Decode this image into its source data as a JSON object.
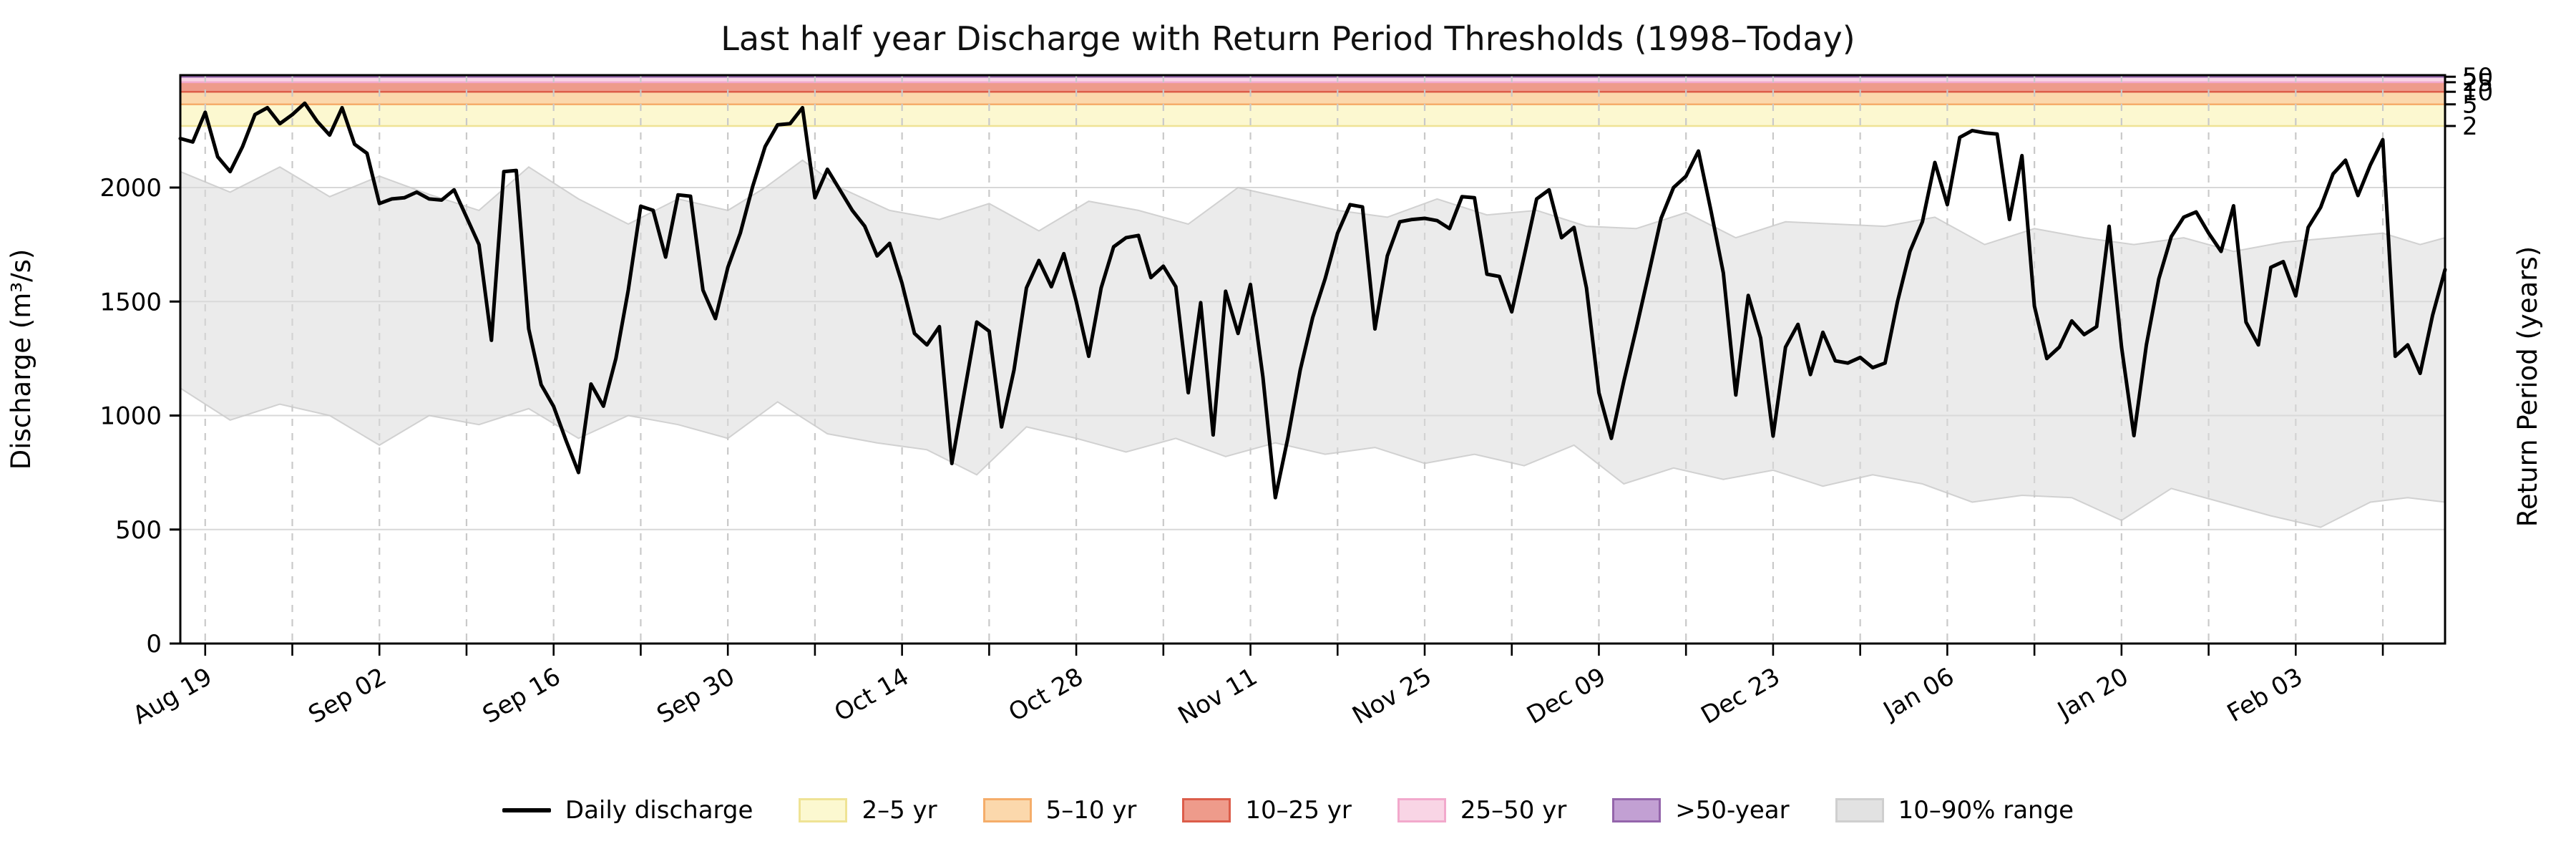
{
  "title": "Last half year Discharge with Return Period Thresholds (1998–Today)",
  "y_axis": {
    "label": "Discharge (m³/s)",
    "ticks": [
      0,
      500,
      1000,
      1500,
      2000
    ],
    "max": 2493
  },
  "right_axis": {
    "label": "Return Period (years)",
    "ticks": [
      {
        "label": "2",
        "discharge": 2270
      },
      {
        "label": "5",
        "discharge": 2365
      },
      {
        "label": "10",
        "discharge": 2420
      },
      {
        "label": "25",
        "discharge": 2462
      },
      {
        "label": "50",
        "discharge": 2486
      }
    ]
  },
  "x_axis": {
    "first_day_date": "Aug 17",
    "total_days": 182,
    "minor_tick_step_days": 7,
    "major_tick_days": [
      2,
      16,
      30,
      44,
      58,
      72,
      86,
      100,
      114,
      128,
      142,
      156,
      170
    ],
    "tick_labels": [
      "Aug 19",
      "Sep 02",
      "Sep 16",
      "Sep 30",
      "Oct 14",
      "Oct 28",
      "Nov 11",
      "Nov 25",
      "Dec 09",
      "Dec 23",
      "Jan 06",
      "Jan 20",
      "Feb 03"
    ]
  },
  "legend": [
    {
      "type": "line",
      "label": "Daily discharge",
      "color": "#000000"
    },
    {
      "type": "patch",
      "label": "2–5 yr",
      "fill": "#FCF8D0",
      "edge": "#EFE395"
    },
    {
      "type": "patch",
      "label": "5–10 yr",
      "fill": "#FBD8AC",
      "edge": "#F5AD6A"
    },
    {
      "type": "patch",
      "label": "10–25 yr",
      "fill": "#EE9B8B",
      "edge": "#DC5D4A"
    },
    {
      "type": "patch",
      "label": "25–50 yr",
      "fill": "#F9D5E5",
      "edge": "#F2A9CC"
    },
    {
      "type": "patch",
      "label": ">50-year",
      "fill": "#C2A0D3",
      "edge": "#9465AB"
    },
    {
      "type": "patch",
      "label": "10–90% range",
      "fill": "#E2E2E2",
      "edge": "#CFCFCF"
    }
  ],
  "colors": {
    "line": "#000000",
    "grid_horizontal": "#D8D8D8",
    "grid_vertical": "#C9C9C9",
    "spine": "#000000",
    "band_fill": "#DADADA",
    "band_edge": "#C8C8C8"
  },
  "chart_data": {
    "type": "line",
    "title": "Last half year Discharge with Return Period Thresholds (1998–Today)",
    "xlabel": "",
    "ylabel": "Discharge (m³/s)",
    "ylabel_right": "Return Period (years)",
    "ylim": [
      0,
      2493
    ],
    "x_unit": "days since Aug 17",
    "grid": {
      "horizontal": [
        500,
        1000,
        1500,
        2000
      ],
      "vertical_every_days": 7
    },
    "series": [
      {
        "name": "Daily discharge",
        "x_step_days": 1,
        "values": [
          2215,
          2200,
          2330,
          2135,
          2070,
          2180,
          2320,
          2350,
          2280,
          2320,
          2370,
          2290,
          2230,
          2350,
          2190,
          2150,
          1930,
          1950,
          1955,
          1980,
          1950,
          1945,
          1990,
          1870,
          1750,
          1330,
          2070,
          2075,
          1380,
          1135,
          1040,
          890,
          750,
          1138,
          1041,
          1250,
          1550,
          1918,
          1900,
          1695,
          1968,
          1962,
          1550,
          1425,
          1650,
          1800,
          2005,
          2180,
          2275,
          2280,
          2350,
          1955,
          2080,
          1990,
          1900,
          1830,
          1700,
          1755,
          1580,
          1360,
          1310,
          1390,
          790,
          1100,
          1410,
          1370,
          950,
          1200,
          1560,
          1680,
          1565,
          1710,
          1500,
          1260,
          1560,
          1740,
          1780,
          1790,
          1605,
          1655,
          1565,
          1100,
          1495,
          915,
          1545,
          1360,
          1575,
          1170,
          640,
          900,
          1200,
          1430,
          1600,
          1800,
          1925,
          1915,
          1380,
          1700,
          1850,
          1860,
          1865,
          1855,
          1820,
          1960,
          1955,
          1620,
          1610,
          1455,
          1700,
          1950,
          1990,
          1780,
          1825,
          1560,
          1100,
          900,
          1150,
          1380,
          1620,
          1865,
          2000,
          2050,
          2160,
          1900,
          1625,
          1090,
          1527,
          1340,
          910,
          1300,
          1400,
          1180,
          1365,
          1240,
          1230,
          1255,
          1210,
          1230,
          1500,
          1720,
          1850,
          2110,
          1925,
          2220,
          2250,
          2240,
          2235,
          1860,
          2140,
          1480,
          1250,
          1300,
          1415,
          1355,
          1390,
          1830,
          1300,
          912,
          1310,
          1600,
          1785,
          1870,
          1893,
          1800,
          1720,
          1920,
          1410,
          1310,
          1650,
          1675,
          1525,
          1825,
          1913,
          2060,
          2120,
          1965,
          2100,
          2210,
          1260,
          1310,
          1185,
          1440,
          1640
        ]
      }
    ],
    "percentile_band": {
      "name": "10–90% range",
      "upper_anchors": [
        [
          0,
          2070
        ],
        [
          4,
          1980
        ],
        [
          8,
          2090
        ],
        [
          12,
          1960
        ],
        [
          16,
          2050
        ],
        [
          20,
          1970
        ],
        [
          24,
          1900
        ],
        [
          28,
          2090
        ],
        [
          32,
          1950
        ],
        [
          36,
          1840
        ],
        [
          40,
          1950
        ],
        [
          44,
          1900
        ],
        [
          47,
          2000
        ],
        [
          50,
          2120
        ],
        [
          53,
          2000
        ],
        [
          57,
          1900
        ],
        [
          61,
          1860
        ],
        [
          65,
          1930
        ],
        [
          69,
          1810
        ],
        [
          73,
          1940
        ],
        [
          77,
          1900
        ],
        [
          81,
          1840
        ],
        [
          85,
          2000
        ],
        [
          89,
          1950
        ],
        [
          93,
          1900
        ],
        [
          97,
          1870
        ],
        [
          101,
          1950
        ],
        [
          105,
          1880
        ],
        [
          109,
          1900
        ],
        [
          113,
          1830
        ],
        [
          117,
          1820
        ],
        [
          121,
          1890
        ],
        [
          125,
          1780
        ],
        [
          129,
          1850
        ],
        [
          133,
          1840
        ],
        [
          137,
          1830
        ],
        [
          141,
          1870
        ],
        [
          145,
          1750
        ],
        [
          149,
          1820
        ],
        [
          153,
          1780
        ],
        [
          157,
          1750
        ],
        [
          161,
          1780
        ],
        [
          165,
          1720
        ],
        [
          169,
          1760
        ],
        [
          173,
          1780
        ],
        [
          177,
          1800
        ],
        [
          180,
          1750
        ],
        [
          182,
          1780
        ]
      ],
      "lower_anchors": [
        [
          0,
          1120
        ],
        [
          4,
          980
        ],
        [
          8,
          1050
        ],
        [
          12,
          1000
        ],
        [
          16,
          870
        ],
        [
          20,
          1000
        ],
        [
          24,
          960
        ],
        [
          28,
          1030
        ],
        [
          32,
          900
        ],
        [
          36,
          1000
        ],
        [
          40,
          960
        ],
        [
          44,
          900
        ],
        [
          48,
          1060
        ],
        [
          52,
          920
        ],
        [
          56,
          880
        ],
        [
          60,
          850
        ],
        [
          64,
          740
        ],
        [
          68,
          950
        ],
        [
          72,
          900
        ],
        [
          76,
          840
        ],
        [
          80,
          900
        ],
        [
          84,
          820
        ],
        [
          88,
          880
        ],
        [
          92,
          830
        ],
        [
          96,
          860
        ],
        [
          100,
          790
        ],
        [
          104,
          830
        ],
        [
          108,
          780
        ],
        [
          112,
          870
        ],
        [
          116,
          700
        ],
        [
          120,
          770
        ],
        [
          124,
          720
        ],
        [
          128,
          760
        ],
        [
          132,
          690
        ],
        [
          136,
          740
        ],
        [
          140,
          700
        ],
        [
          144,
          620
        ],
        [
          148,
          650
        ],
        [
          152,
          640
        ],
        [
          156,
          540
        ],
        [
          160,
          680
        ],
        [
          164,
          620
        ],
        [
          168,
          560
        ],
        [
          172,
          510
        ],
        [
          176,
          620
        ],
        [
          179,
          640
        ],
        [
          182,
          620
        ]
      ]
    },
    "threshold_bands": [
      {
        "label": "2–5 yr",
        "from": 2270,
        "to": 2365
      },
      {
        "label": "5–10 yr",
        "from": 2365,
        "to": 2420
      },
      {
        "label": "10–25 yr",
        "from": 2420,
        "to": 2462
      },
      {
        "label": "25–50 yr",
        "from": 2462,
        "to": 2486
      },
      {
        "label": ">50-year",
        "from": 2486,
        "to": 2493
      }
    ]
  }
}
